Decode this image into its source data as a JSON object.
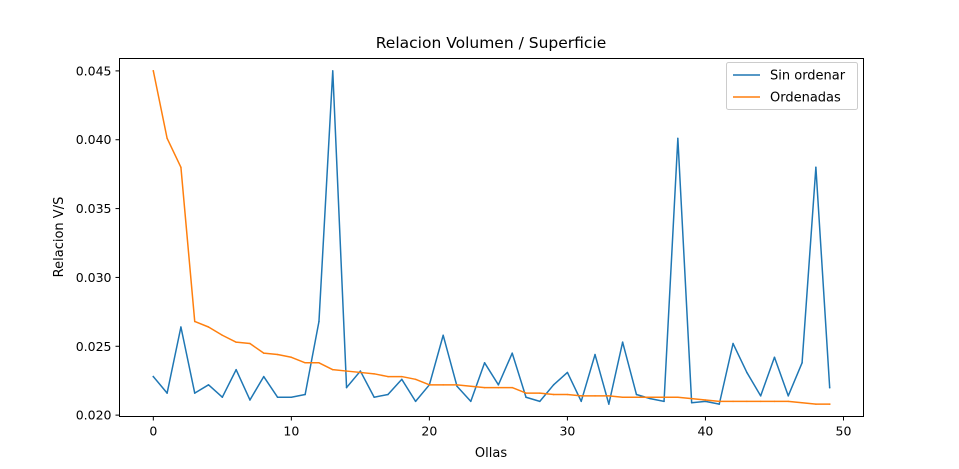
{
  "chart_data": {
    "type": "line",
    "title": "Relacion Volumen / Superficie",
    "xlabel": "Ollas",
    "ylabel": "Relacion V/S",
    "xlim": [
      -2.45,
      51.45
    ],
    "ylim": [
      0.0199,
      0.0459
    ],
    "x_ticks": [
      0,
      10,
      20,
      30,
      40,
      50
    ],
    "y_ticks": [
      0.02,
      0.025,
      0.03,
      0.035,
      0.04,
      0.045
    ],
    "x_tick_labels": [
      "0",
      "10",
      "20",
      "30",
      "40",
      "50"
    ],
    "y_tick_labels": [
      "0.020",
      "0.025",
      "0.030",
      "0.035",
      "0.040",
      "0.045"
    ],
    "legend_position": "top-right",
    "grid": false,
    "series": [
      {
        "name": "Sin ordenar",
        "color": "#1f77b4",
        "x": [
          0,
          1,
          2,
          3,
          4,
          5,
          6,
          7,
          8,
          9,
          10,
          11,
          12,
          13,
          14,
          15,
          16,
          17,
          18,
          19,
          20,
          21,
          22,
          23,
          24,
          25,
          26,
          27,
          28,
          29,
          30,
          31,
          32,
          33,
          34,
          35,
          36,
          37,
          38,
          39,
          40,
          41,
          42,
          43,
          44,
          45,
          46,
          47,
          48,
          49
        ],
        "y": [
          0.0228,
          0.0216,
          0.0264,
          0.0216,
          0.0222,
          0.0213,
          0.0233,
          0.0211,
          0.0228,
          0.0213,
          0.0213,
          0.0215,
          0.0268,
          0.045,
          0.022,
          0.0232,
          0.0213,
          0.0215,
          0.0226,
          0.021,
          0.0222,
          0.0258,
          0.0221,
          0.021,
          0.0238,
          0.0222,
          0.0245,
          0.0213,
          0.021,
          0.0222,
          0.0231,
          0.021,
          0.0244,
          0.0208,
          0.0253,
          0.0215,
          0.0212,
          0.021,
          0.0401,
          0.0209,
          0.021,
          0.0208,
          0.0252,
          0.0231,
          0.0214,
          0.0242,
          0.0214,
          0.0238,
          0.038,
          0.022
        ]
      },
      {
        "name": "Ordenadas",
        "color": "#ff7f0e",
        "x": [
          0,
          1,
          2,
          3,
          4,
          5,
          6,
          7,
          8,
          9,
          10,
          11,
          12,
          13,
          14,
          15,
          16,
          17,
          18,
          19,
          20,
          21,
          22,
          23,
          24,
          25,
          26,
          27,
          28,
          29,
          30,
          31,
          32,
          33,
          34,
          35,
          36,
          37,
          38,
          39,
          40,
          41,
          42,
          43,
          44,
          45,
          46,
          47,
          48,
          49
        ],
        "y": [
          0.045,
          0.0401,
          0.038,
          0.0268,
          0.0264,
          0.0258,
          0.0253,
          0.0252,
          0.0245,
          0.0244,
          0.0242,
          0.0238,
          0.0238,
          0.0233,
          0.0232,
          0.0231,
          0.023,
          0.0228,
          0.0228,
          0.0226,
          0.0222,
          0.0222,
          0.0222,
          0.0221,
          0.022,
          0.022,
          0.022,
          0.0216,
          0.0216,
          0.0215,
          0.0215,
          0.0214,
          0.0214,
          0.0214,
          0.0213,
          0.0213,
          0.0213,
          0.0213,
          0.0213,
          0.0212,
          0.0211,
          0.021,
          0.021,
          0.021,
          0.021,
          0.021,
          0.021,
          0.0209,
          0.0208,
          0.0208
        ]
      }
    ]
  }
}
